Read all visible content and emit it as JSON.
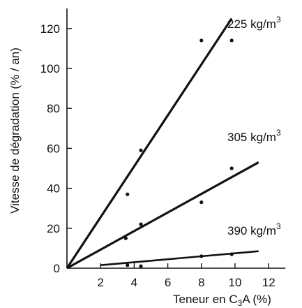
{
  "chart_data": {
    "type": "scatter",
    "title": "",
    "ylabel": "Vitesse de dégradation (% / an)",
    "xlabel": {
      "prefix": "Teneur en C",
      "subscript": "3",
      "suffix": "A (%)"
    },
    "xlim": [
      0,
      13
    ],
    "ylim": [
      0,
      130
    ],
    "x_ticks": [
      2,
      4,
      6,
      8,
      10,
      12
    ],
    "y_ticks": [
      0,
      20,
      40,
      60,
      80,
      100,
      120
    ],
    "grid": false,
    "legend": "none",
    "series": [
      {
        "name": "225 kg/m3",
        "label": {
          "value": "225",
          "unit": "kg/m",
          "exp": "3"
        },
        "points": [
          [
            3.6,
            37
          ],
          [
            4.4,
            59
          ],
          [
            8.0,
            114
          ],
          [
            9.8,
            114
          ]
        ],
        "fit_line": {
          "x": [
            0,
            9.8
          ],
          "y": [
            0,
            125
          ]
        }
      },
      {
        "name": "305 kg/m3",
        "label": {
          "value": "305",
          "unit": "kg/m",
          "exp": "3"
        },
        "points": [
          [
            3.5,
            15
          ],
          [
            4.4,
            22
          ],
          [
            8.0,
            33
          ],
          [
            9.8,
            50
          ]
        ],
        "fit_line": {
          "x": [
            0,
            11.4
          ],
          "y": [
            0,
            53
          ]
        }
      },
      {
        "name": "390 kg/m3",
        "label": {
          "value": "390",
          "unit": "kg/m",
          "exp": "3"
        },
        "points": [
          [
            3.6,
            1.5
          ],
          [
            4.4,
            1
          ],
          [
            8.0,
            6
          ],
          [
            9.8,
            7
          ]
        ],
        "fit_line": {
          "x": [
            2.0,
            11.4
          ],
          "y": [
            1.5,
            8.5
          ]
        }
      }
    ]
  }
}
